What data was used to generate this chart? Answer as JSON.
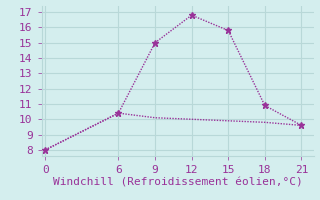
{
  "line1_x": [
    0,
    6,
    9,
    12,
    15,
    18,
    21
  ],
  "line1_y": [
    8.0,
    10.4,
    10.1,
    10.0,
    9.9,
    9.8,
    9.6
  ],
  "line2_x": [
    0,
    6,
    9,
    12,
    15,
    18,
    21
  ],
  "line2_y": [
    8.0,
    10.4,
    15.0,
    16.8,
    15.8,
    10.9,
    9.6
  ],
  "line_color": "#993399",
  "bg_color": "#d4eeee",
  "xlabel": "Windchill (Refroidissement éolien,°C)",
  "xlabel_color": "#993399",
  "xticks": [
    0,
    6,
    9,
    12,
    15,
    18,
    21
  ],
  "yticks": [
    8,
    9,
    10,
    11,
    12,
    13,
    14,
    15,
    16,
    17
  ],
  "ylim": [
    7.6,
    17.4
  ],
  "xlim": [
    -0.3,
    22.0
  ],
  "grid_color": "#b8d8d8",
  "marker": "*",
  "marker_size": 5,
  "linewidth": 1.0,
  "xlabel_fontsize": 8,
  "tick_fontsize": 8
}
